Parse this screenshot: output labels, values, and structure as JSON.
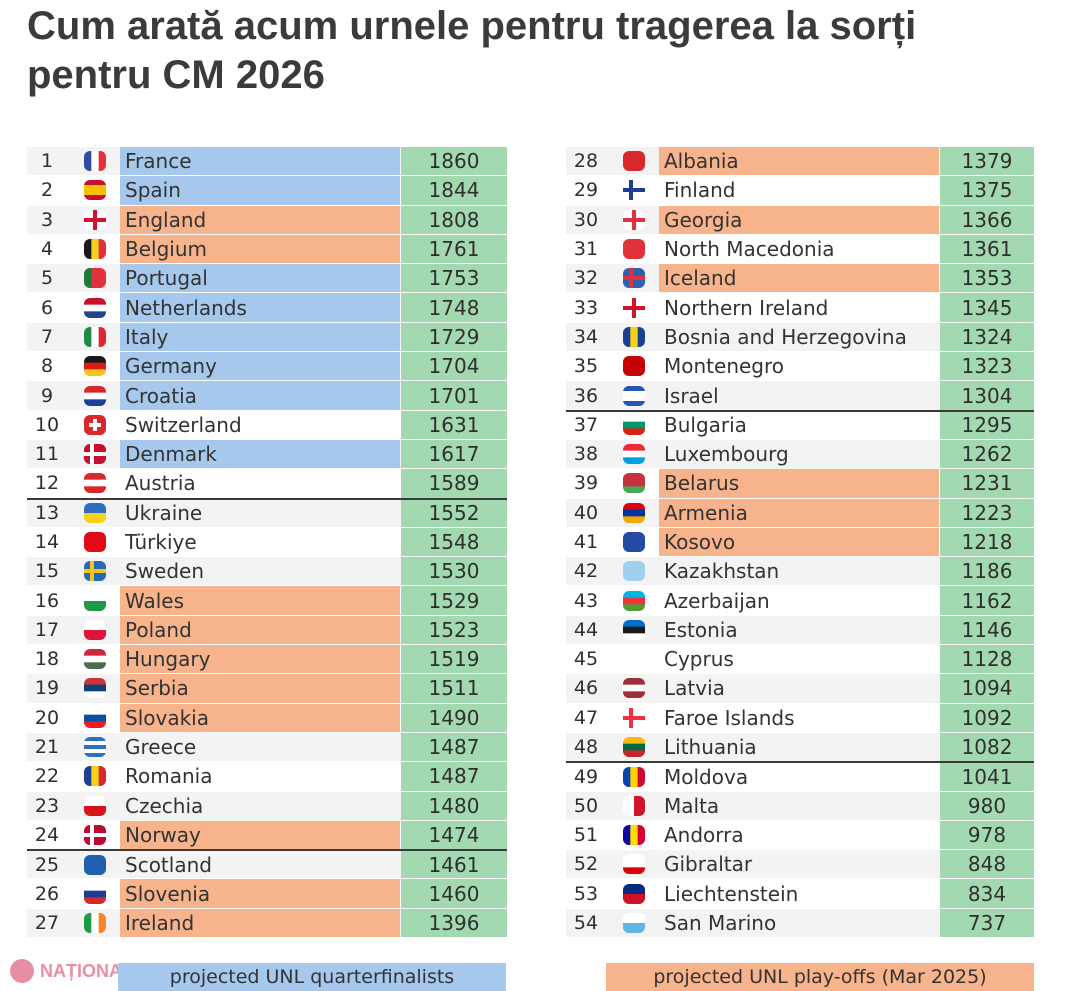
{
  "headline": "Cum arată acum urnele pentru tragerea la sorți pentru CM 2026",
  "colors": {
    "blue": "#a6c8ec",
    "orange": "#f7b48c",
    "green": "#a3d9b1",
    "row_a": "#f3f3f3",
    "row_b": "#ffffff"
  },
  "legend": {
    "quarterfinalists": "projected UNL quarterfinalists",
    "playoffs": "projected UNL play-offs (Mar 2025)"
  },
  "watermark": "NAȚIONAL",
  "left_table": [
    {
      "rank": "1",
      "country": "France",
      "points": "1860",
      "hl": "blue",
      "flag": "france-flag-icon"
    },
    {
      "rank": "2",
      "country": "Spain",
      "points": "1844",
      "hl": "blue",
      "flag": "spain-flag-icon"
    },
    {
      "rank": "3",
      "country": "England",
      "points": "1808",
      "hl": "orange",
      "flag": "england-flag-icon"
    },
    {
      "rank": "4",
      "country": "Belgium",
      "points": "1761",
      "hl": "orange",
      "flag": "belgium-flag-icon"
    },
    {
      "rank": "5",
      "country": "Portugal",
      "points": "1753",
      "hl": "blue",
      "flag": "portugal-flag-icon"
    },
    {
      "rank": "6",
      "country": "Netherlands",
      "points": "1748",
      "hl": "blue",
      "flag": "netherlands-flag-icon"
    },
    {
      "rank": "7",
      "country": "Italy",
      "points": "1729",
      "hl": "blue",
      "flag": "italy-flag-icon"
    },
    {
      "rank": "8",
      "country": "Germany",
      "points": "1704",
      "hl": "blue",
      "flag": "germany-flag-icon"
    },
    {
      "rank": "9",
      "country": "Croatia",
      "points": "1701",
      "hl": "blue",
      "flag": "croatia-flag-icon"
    },
    {
      "rank": "10",
      "country": "Switzerland",
      "points": "1631",
      "hl": "none",
      "flag": "switzerland-flag-icon"
    },
    {
      "rank": "11",
      "country": "Denmark",
      "points": "1617",
      "hl": "blue",
      "flag": "denmark-flag-icon"
    },
    {
      "rank": "12",
      "country": "Austria",
      "points": "1589",
      "hl": "none",
      "flag": "austria-flag-icon"
    },
    {
      "rank": "13",
      "country": "Ukraine",
      "points": "1552",
      "hl": "none",
      "flag": "ukraine-flag-icon"
    },
    {
      "rank": "14",
      "country": "Türkiye",
      "points": "1548",
      "hl": "none",
      "flag": "turkiye-flag-icon"
    },
    {
      "rank": "15",
      "country": "Sweden",
      "points": "1530",
      "hl": "none",
      "flag": "sweden-flag-icon"
    },
    {
      "rank": "16",
      "country": "Wales",
      "points": "1529",
      "hl": "orange",
      "flag": "wales-flag-icon"
    },
    {
      "rank": "17",
      "country": "Poland",
      "points": "1523",
      "hl": "orange",
      "flag": "poland-flag-icon"
    },
    {
      "rank": "18",
      "country": "Hungary",
      "points": "1519",
      "hl": "orange",
      "flag": "hungary-flag-icon"
    },
    {
      "rank": "19",
      "country": "Serbia",
      "points": "1511",
      "hl": "orange",
      "flag": "serbia-flag-icon"
    },
    {
      "rank": "20",
      "country": "Slovakia",
      "points": "1490",
      "hl": "orange",
      "flag": "slovakia-flag-icon"
    },
    {
      "rank": "21",
      "country": "Greece",
      "points": "1487",
      "hl": "none",
      "flag": "greece-flag-icon"
    },
    {
      "rank": "22",
      "country": "Romania",
      "points": "1487",
      "hl": "none",
      "flag": "romania-flag-icon"
    },
    {
      "rank": "23",
      "country": "Czechia",
      "points": "1480",
      "hl": "none",
      "flag": "czechia-flag-icon"
    },
    {
      "rank": "24",
      "country": "Norway",
      "points": "1474",
      "hl": "orange",
      "flag": "norway-flag-icon"
    },
    {
      "rank": "25",
      "country": "Scotland",
      "points": "1461",
      "hl": "none",
      "flag": "scotland-flag-icon"
    },
    {
      "rank": "26",
      "country": "Slovenia",
      "points": "1460",
      "hl": "orange",
      "flag": "slovenia-flag-icon"
    },
    {
      "rank": "27",
      "country": "Ireland",
      "points": "1396",
      "hl": "orange",
      "flag": "ireland-flag-icon"
    }
  ],
  "right_table": [
    {
      "rank": "28",
      "country": "Albania",
      "points": "1379",
      "hl": "orange",
      "flag": "albania-flag-icon"
    },
    {
      "rank": "29",
      "country": "Finland",
      "points": "1375",
      "hl": "none",
      "flag": "finland-flag-icon"
    },
    {
      "rank": "30",
      "country": "Georgia",
      "points": "1366",
      "hl": "orange",
      "flag": "georgia-flag-icon"
    },
    {
      "rank": "31",
      "country": "North Macedonia",
      "points": "1361",
      "hl": "none",
      "flag": "north-macedonia-flag-icon"
    },
    {
      "rank": "32",
      "country": "Iceland",
      "points": "1353",
      "hl": "orange",
      "flag": "iceland-flag-icon"
    },
    {
      "rank": "33",
      "country": "Northern Ireland",
      "points": "1345",
      "hl": "none",
      "flag": "northern-ireland-flag-icon"
    },
    {
      "rank": "34",
      "country": "Bosnia and Herzegovina",
      "points": "1324",
      "hl": "none",
      "flag": "bosnia-flag-icon"
    },
    {
      "rank": "35",
      "country": "Montenegro",
      "points": "1323",
      "hl": "none",
      "flag": "montenegro-flag-icon"
    },
    {
      "rank": "36",
      "country": "Israel",
      "points": "1304",
      "hl": "none",
      "flag": "israel-flag-icon"
    },
    {
      "rank": "37",
      "country": "Bulgaria",
      "points": "1295",
      "hl": "none",
      "flag": "bulgaria-flag-icon"
    },
    {
      "rank": "38",
      "country": "Luxembourg",
      "points": "1262",
      "hl": "none",
      "flag": "luxembourg-flag-icon"
    },
    {
      "rank": "39",
      "country": "Belarus",
      "points": "1231",
      "hl": "orange",
      "flag": "belarus-flag-icon"
    },
    {
      "rank": "40",
      "country": "Armenia",
      "points": "1223",
      "hl": "orange",
      "flag": "armenia-flag-icon"
    },
    {
      "rank": "41",
      "country": "Kosovo",
      "points": "1218",
      "hl": "orange",
      "flag": "kosovo-flag-icon"
    },
    {
      "rank": "42",
      "country": "Kazakhstan",
      "points": "1186",
      "hl": "none",
      "flag": "kazakhstan-flag-icon"
    },
    {
      "rank": "43",
      "country": "Azerbaijan",
      "points": "1162",
      "hl": "none",
      "flag": "azerbaijan-flag-icon"
    },
    {
      "rank": "44",
      "country": "Estonia",
      "points": "1146",
      "hl": "none",
      "flag": "estonia-flag-icon"
    },
    {
      "rank": "45",
      "country": "Cyprus",
      "points": "1128",
      "hl": "none",
      "flag": "cyprus-flag-icon"
    },
    {
      "rank": "46",
      "country": "Latvia",
      "points": "1094",
      "hl": "none",
      "flag": "latvia-flag-icon"
    },
    {
      "rank": "47",
      "country": "Faroe Islands",
      "points": "1092",
      "hl": "none",
      "flag": "faroe-islands-flag-icon"
    },
    {
      "rank": "48",
      "country": "Lithuania",
      "points": "1082",
      "hl": "none",
      "flag": "lithuania-flag-icon"
    },
    {
      "rank": "49",
      "country": "Moldova",
      "points": "1041",
      "hl": "none",
      "flag": "moldova-flag-icon"
    },
    {
      "rank": "50",
      "country": "Malta",
      "points": "980",
      "hl": "none",
      "flag": "malta-flag-icon"
    },
    {
      "rank": "51",
      "country": "Andorra",
      "points": "978",
      "hl": "none",
      "flag": "andorra-flag-icon"
    },
    {
      "rank": "52",
      "country": "Gibraltar",
      "points": "848",
      "hl": "none",
      "flag": "gibraltar-flag-icon"
    },
    {
      "rank": "53",
      "country": "Liechtenstein",
      "points": "834",
      "hl": "none",
      "flag": "liechtenstein-flag-icon"
    },
    {
      "rank": "54",
      "country": "San Marino",
      "points": "737",
      "hl": "none",
      "flag": "san-marino-flag-icon"
    }
  ]
}
